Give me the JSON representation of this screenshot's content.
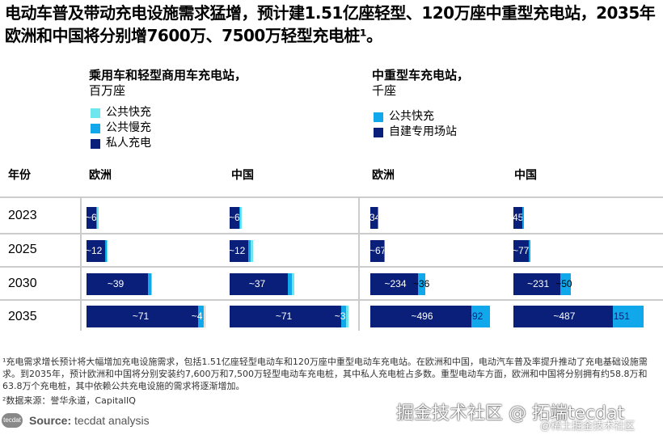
{
  "title": "电动车普及带动充电设施需求猛增，预计建1.51亿座轻型、120万座中重型充电站，2035年欧洲和中国将分别增7600万、7500万轻型充电桩¹。",
  "chart_data": [
    {
      "type": "bar",
      "stacked": true,
      "orientation": "horizontal",
      "title": "乘用车和轻型商用车充电站，",
      "unit": "百万座",
      "legend": [
        "公共快充",
        "公共慢充",
        "私人充电"
      ],
      "colors": {
        "公共快充": "#6ee6ee",
        "公共慢充": "#10a8ea",
        "私人充电": "#0a1f7a"
      },
      "groups": [
        "欧洲",
        "中国"
      ],
      "categories": [
        "2023",
        "2025",
        "2030",
        "2035"
      ],
      "data": {
        "欧洲": {
          "私人充电": [
            6,
            12,
            39,
            71
          ],
          "公共慢充": [
            0.4,
            0.6,
            2,
            4
          ],
          "公共快充": [
            0.2,
            0.3,
            0.6,
            1
          ]
        },
        "中国": {
          "私人充电": [
            6,
            12,
            37,
            71
          ],
          "公共慢充": [
            0.8,
            1.5,
            2.5,
            3
          ],
          "公共快充": [
            1,
            1.3,
            1.5,
            2
          ]
        }
      },
      "labels": {
        "欧洲": {
          "私人充电": [
            "~6",
            "~12",
            "~39",
            "~71"
          ],
          "公共慢充": [
            "",
            "",
            "",
            "~4"
          ]
        },
        "中国": {
          "私人充电": [
            "~6",
            "~12",
            "~37",
            "~71"
          ],
          "公共慢充": [
            "",
            "",
            "",
            "~3"
          ]
        }
      }
    },
    {
      "type": "bar",
      "stacked": true,
      "orientation": "horizontal",
      "title": "中重型车充电站，",
      "unit": "千座",
      "legend": [
        "公共快充",
        "自建专用场站"
      ],
      "colors": {
        "公共快充": "#10a8ea",
        "自建专用场站": "#0a1f7a"
      },
      "groups": [
        "欧洲",
        "中国"
      ],
      "categories": [
        "2023",
        "2025",
        "2030",
        "2035"
      ],
      "data": {
        "欧洲": {
          "自建专用场站": [
            34,
            67,
            234,
            496
          ],
          "公共快充": [
            3,
            5,
            36,
            92
          ]
        },
        "中国": {
          "自建专用场站": [
            45,
            77,
            231,
            487
          ],
          "公共快充": [
            3,
            6,
            50,
            151
          ]
        }
      },
      "labels": {
        "欧洲": {
          "自建专用场站": [
            "34",
            "~67",
            "~234",
            "~496"
          ],
          "公共快充": [
            "",
            "",
            "~36",
            "~92"
          ]
        },
        "中国": {
          "自建专用场站": [
            "45",
            "~77",
            "~231",
            "~487"
          ],
          "公共快充": [
            "",
            "",
            "~50",
            "~151"
          ]
        }
      }
    }
  ],
  "row_header": "年份",
  "footnote1": "¹充电需求增长预计将大幅增加充电设施需求，包括1.51亿座轻型电动车和120万座中重型电动车充电站。在欧洲和中国，电动汽车普及率提升推动了充电基础设施需求。到2035年，预计欧洲和中国将分别安装约7,600万和7,500万轻型电动车充电桩，其中私人充电桩占多数。重型电动车方面，欧洲和中国将分别拥有约58.8万和63.8万个充电桩，其中依赖公共充电设施的需求将逐渐增加。",
  "footnote2": "²数据来源：誉华永道，CapitalIQ",
  "source_label": "Source:",
  "source_text": "tecdat analysis",
  "logo": "tecdat",
  "watermark": "掘金技术社区 @ 拓端tecdat",
  "watermark2": "@稀土掘金技术社区"
}
